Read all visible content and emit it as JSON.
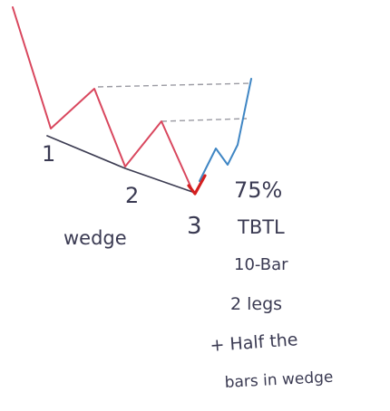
{
  "diagram": {
    "point_labels": [
      "1",
      "2",
      "3"
    ],
    "pattern_label": "wedge",
    "notes": [
      "75%",
      "TBTL",
      "10-Bar",
      "2 legs",
      "+ Half the",
      "bars in wedge"
    ],
    "colors": {
      "bear_leg": "#d9475e",
      "bull_leg": "#3f86c4",
      "trendline": "#3c3c52",
      "dashed_target": "#9a9aa2",
      "entry_mark": "#d41f1f",
      "ink": "#3a3a52"
    }
  }
}
